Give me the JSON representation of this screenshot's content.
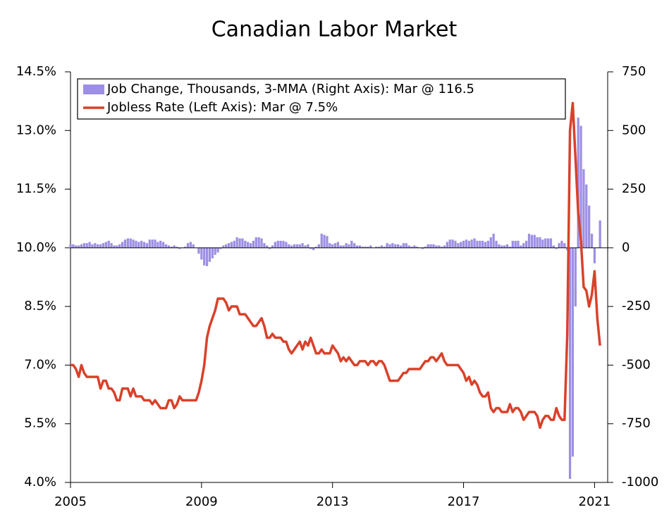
{
  "chart_data": {
    "type": "bar-line",
    "title": "Canadian Labor Market",
    "x": [
      "2005-01",
      "2005-02",
      "2005-03",
      "2005-04",
      "2005-05",
      "2005-06",
      "2005-07",
      "2005-08",
      "2005-09",
      "2005-10",
      "2005-11",
      "2005-12",
      "2006-01",
      "2006-02",
      "2006-03",
      "2006-04",
      "2006-05",
      "2006-06",
      "2006-07",
      "2006-08",
      "2006-09",
      "2006-10",
      "2006-11",
      "2006-12",
      "2007-01",
      "2007-02",
      "2007-03",
      "2007-04",
      "2007-05",
      "2007-06",
      "2007-07",
      "2007-08",
      "2007-09",
      "2007-10",
      "2007-11",
      "2007-12",
      "2008-01",
      "2008-02",
      "2008-03",
      "2008-04",
      "2008-05",
      "2008-06",
      "2008-07",
      "2008-08",
      "2008-09",
      "2008-10",
      "2008-11",
      "2008-12",
      "2009-01",
      "2009-02",
      "2009-03",
      "2009-04",
      "2009-05",
      "2009-06",
      "2009-07",
      "2009-08",
      "2009-09",
      "2009-10",
      "2009-11",
      "2009-12",
      "2010-01",
      "2010-02",
      "2010-03",
      "2010-04",
      "2010-05",
      "2010-06",
      "2010-07",
      "2010-08",
      "2010-09",
      "2010-10",
      "2010-11",
      "2010-12",
      "2011-01",
      "2011-02",
      "2011-03",
      "2011-04",
      "2011-05",
      "2011-06",
      "2011-07",
      "2011-08",
      "2011-09",
      "2011-10",
      "2011-11",
      "2011-12",
      "2012-01",
      "2012-02",
      "2012-03",
      "2012-04",
      "2012-05",
      "2012-06",
      "2012-07",
      "2012-08",
      "2012-09",
      "2012-10",
      "2012-11",
      "2012-12",
      "2013-01",
      "2013-02",
      "2013-03",
      "2013-04",
      "2013-05",
      "2013-06",
      "2013-07",
      "2013-08",
      "2013-09",
      "2013-10",
      "2013-11",
      "2013-12",
      "2014-01",
      "2014-02",
      "2014-03",
      "2014-04",
      "2014-05",
      "2014-06",
      "2014-07",
      "2014-08",
      "2014-09",
      "2014-10",
      "2014-11",
      "2014-12",
      "2015-01",
      "2015-02",
      "2015-03",
      "2015-04",
      "2015-05",
      "2015-06",
      "2015-07",
      "2015-08",
      "2015-09",
      "2015-10",
      "2015-11",
      "2015-12",
      "2016-01",
      "2016-02",
      "2016-03",
      "2016-04",
      "2016-05",
      "2016-06",
      "2016-07",
      "2016-08",
      "2016-09",
      "2016-10",
      "2016-11",
      "2016-12",
      "2017-01",
      "2017-02",
      "2017-03",
      "2017-04",
      "2017-05",
      "2017-06",
      "2017-07",
      "2017-08",
      "2017-09",
      "2017-10",
      "2017-11",
      "2017-12",
      "2018-01",
      "2018-02",
      "2018-03",
      "2018-04",
      "2018-05",
      "2018-06",
      "2018-07",
      "2018-08",
      "2018-09",
      "2018-10",
      "2018-11",
      "2018-12",
      "2019-01",
      "2019-02",
      "2019-03",
      "2019-04",
      "2019-05",
      "2019-06",
      "2019-07",
      "2019-08",
      "2019-09",
      "2019-10",
      "2019-11",
      "2019-12",
      "2020-01",
      "2020-02",
      "2020-03",
      "2020-04",
      "2020-05",
      "2020-06",
      "2020-07",
      "2020-08",
      "2020-09",
      "2020-10",
      "2020-11",
      "2020-12",
      "2021-01",
      "2021-02",
      "2021-03"
    ],
    "series": [
      {
        "name": "Job Change, Thousands, 3-MMA (Right Axis): Mar @ 116.5",
        "type": "bar",
        "axis": "y2",
        "color": "#9d8fe5",
        "values": [
          15,
          15,
          10,
          10,
          15,
          20,
          20,
          25,
          15,
          20,
          15,
          15,
          20,
          25,
          30,
          20,
          10,
          10,
          15,
          25,
          35,
          40,
          40,
          35,
          30,
          25,
          30,
          25,
          20,
          35,
          35,
          35,
          25,
          30,
          25,
          15,
          10,
          5,
          10,
          5,
          -5,
          0,
          5,
          20,
          25,
          15,
          0,
          -25,
          -50,
          -75,
          -78,
          -60,
          -45,
          -30,
          -20,
          -5,
          10,
          15,
          20,
          25,
          30,
          45,
          40,
          40,
          30,
          25,
          20,
          30,
          45,
          45,
          40,
          20,
          10,
          -5,
          10,
          25,
          30,
          30,
          30,
          25,
          15,
          10,
          15,
          15,
          15,
          20,
          10,
          15,
          -5,
          -10,
          5,
          15,
          60,
          55,
          50,
          20,
          15,
          20,
          25,
          10,
          10,
          20,
          15,
          30,
          20,
          10,
          10,
          5,
          5,
          5,
          10,
          0,
          5,
          5,
          10,
          5,
          20,
          15,
          20,
          15,
          15,
          10,
          20,
          20,
          10,
          5,
          10,
          5,
          0,
          -5,
          5,
          15,
          15,
          15,
          10,
          10,
          5,
          10,
          25,
          35,
          35,
          30,
          20,
          25,
          30,
          35,
          30,
          35,
          40,
          30,
          30,
          30,
          25,
          30,
          45,
          60,
          30,
          15,
          10,
          10,
          15,
          5,
          30,
          30,
          30,
          10,
          20,
          30,
          60,
          55,
          55,
          45,
          45,
          35,
          40,
          40,
          40,
          10,
          -5,
          20,
          30,
          20,
          -10,
          -985,
          -890,
          -250,
          555,
          520,
          335,
          270,
          180,
          60,
          -66,
          2,
          116.5
        ]
      },
      {
        "name": "Jobless Rate (Left Axis): Mar @ 7.5%",
        "type": "line",
        "axis": "y",
        "color": "#d9412b",
        "values": [
          7.0,
          7.0,
          6.9,
          6.7,
          7.0,
          6.8,
          6.7,
          6.7,
          6.7,
          6.7,
          6.7,
          6.4,
          6.6,
          6.6,
          6.4,
          6.4,
          6.3,
          6.1,
          6.1,
          6.4,
          6.4,
          6.4,
          6.2,
          6.4,
          6.2,
          6.2,
          6.2,
          6.1,
          6.1,
          6.1,
          6.0,
          6.1,
          6.0,
          5.9,
          5.9,
          5.9,
          6.1,
          6.1,
          5.9,
          6.0,
          6.2,
          6.1,
          6.1,
          6.1,
          6.1,
          6.1,
          6.1,
          6.3,
          6.6,
          7.0,
          7.7,
          8.0,
          8.2,
          8.4,
          8.7,
          8.7,
          8.7,
          8.6,
          8.4,
          8.5,
          8.5,
          8.5,
          8.3,
          8.3,
          8.3,
          8.2,
          8.1,
          8.0,
          8.0,
          8.1,
          8.2,
          8.0,
          7.7,
          7.7,
          7.8,
          7.7,
          7.7,
          7.7,
          7.6,
          7.6,
          7.4,
          7.3,
          7.4,
          7.5,
          7.6,
          7.4,
          7.6,
          7.5,
          7.7,
          7.5,
          7.3,
          7.3,
          7.4,
          7.3,
          7.3,
          7.3,
          7.5,
          7.4,
          7.3,
          7.1,
          7.2,
          7.1,
          7.2,
          7.1,
          7.0,
          7.0,
          7.1,
          7.1,
          7.1,
          7.0,
          7.1,
          7.1,
          7.0,
          7.1,
          7.1,
          7.0,
          6.8,
          6.6,
          6.6,
          6.6,
          6.6,
          6.7,
          6.8,
          6.8,
          6.9,
          6.9,
          6.9,
          6.9,
          6.9,
          7.0,
          7.1,
          7.1,
          7.2,
          7.2,
          7.1,
          7.2,
          7.3,
          7.1,
          7.0,
          7.0,
          7.0,
          7.0,
          7.0,
          6.9,
          6.8,
          6.6,
          6.7,
          6.5,
          6.6,
          6.5,
          6.3,
          6.2,
          6.2,
          6.3,
          5.9,
          5.8,
          5.9,
          5.9,
          5.8,
          5.8,
          5.8,
          6.0,
          5.8,
          5.9,
          5.9,
          5.8,
          5.6,
          5.7,
          5.8,
          5.8,
          5.8,
          5.7,
          5.4,
          5.6,
          5.7,
          5.7,
          5.6,
          5.6,
          5.9,
          5.7,
          5.6,
          5.6,
          7.8,
          13.0,
          13.7,
          12.3,
          10.9,
          10.2,
          9.0,
          8.9,
          8.5,
          8.8,
          9.4,
          8.2,
          7.5
        ]
      }
    ],
    "xlim": [
      2005,
      2021.4
    ],
    "xticks": [
      2005,
      2009,
      2013,
      2017,
      2021
    ],
    "ylim": [
      4.0,
      14.5
    ],
    "yticks": [
      {
        "value": 4.0,
        "label": "4.0%"
      },
      {
        "value": 5.5,
        "label": "5.5%"
      },
      {
        "value": 7.0,
        "label": "7.0%"
      },
      {
        "value": 8.5,
        "label": "8.5%"
      },
      {
        "value": 10.0,
        "label": "10.0%"
      },
      {
        "value": 11.5,
        "label": "11.5%"
      },
      {
        "value": 13.0,
        "label": "13.0%"
      },
      {
        "value": 14.5,
        "label": "14.5%"
      }
    ],
    "y2lim": [
      -1000,
      750
    ],
    "y2ticks": [
      -1000,
      -750,
      -500,
      -250,
      0,
      250,
      500,
      750
    ],
    "legend": "top-left",
    "grid": false
  }
}
